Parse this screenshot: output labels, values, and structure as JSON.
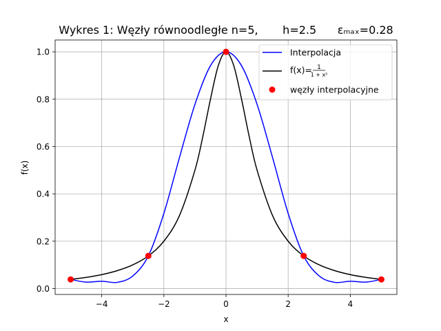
{
  "chart_data": {
    "type": "line",
    "title": "Wykres 1: Węzły równoodległe n=5,       h=2.5      εₘₐₓ=0.28",
    "xlabel": "x",
    "ylabel": "f(x)",
    "xlim": [
      -5.5,
      5.5
    ],
    "ylim": [
      -0.025,
      1.05
    ],
    "xticks": [
      -4,
      -2,
      0,
      2,
      4
    ],
    "yticks": [
      0.0,
      0.2,
      0.4,
      0.6,
      0.8,
      1.0
    ],
    "xtick_labels": [
      "−4",
      "−2",
      "0",
      "2",
      "4"
    ],
    "ytick_labels": [
      "0.0",
      "0.2",
      "0.4",
      "0.6",
      "0.8",
      "1.0"
    ],
    "grid": true,
    "legend_position": "top-right",
    "series": [
      {
        "name": "Interpolacja",
        "kind": "line",
        "color": "#0000ff",
        "x": [
          -5.0,
          -4.5,
          -4.0,
          -3.5,
          -3.0,
          -2.5,
          -2.0,
          -1.5,
          -1.0,
          -0.5,
          0.0,
          0.5,
          1.0,
          1.5,
          2.0,
          2.5,
          3.0,
          3.5,
          4.0,
          4.5,
          5.0
        ],
        "y": [
          0.0385,
          0.0271,
          0.0308,
          0.0262,
          0.0531,
          0.1379,
          0.3174,
          0.5524,
          0.7781,
          0.9413,
          1.0,
          0.9413,
          0.7781,
          0.5524,
          0.3174,
          0.1379,
          0.0531,
          0.0262,
          0.0308,
          0.0271,
          0.0385
        ]
      },
      {
        "name": "f(x)=",
        "legend_fraction": {
          "numerator": "1",
          "denominator": "1 + x²"
        },
        "kind": "line",
        "color": "#000000",
        "x": [
          -5.0,
          -4.5,
          -4.0,
          -3.5,
          -3.0,
          -2.5,
          -2.0,
          -1.5,
          -1.0,
          -0.75,
          -0.5,
          -0.25,
          0.0,
          0.25,
          0.5,
          0.75,
          1.0,
          1.5,
          2.0,
          2.5,
          3.0,
          3.5,
          4.0,
          4.5,
          5.0
        ],
        "y": [
          0.0385,
          0.0471,
          0.0588,
          0.0755,
          0.1,
          0.1379,
          0.2,
          0.3077,
          0.5,
          0.64,
          0.8,
          0.9412,
          1.0,
          0.9412,
          0.8,
          0.64,
          0.5,
          0.3077,
          0.2,
          0.1379,
          0.1,
          0.0755,
          0.0588,
          0.0471,
          0.0385
        ]
      },
      {
        "name": "węzły interpolacyjne",
        "kind": "scatter",
        "color": "#ff0000",
        "x": [
          -5.0,
          -2.5,
          0.0,
          2.5,
          5.0
        ],
        "y": [
          0.0385,
          0.1379,
          1.0,
          0.1379,
          0.0385
        ]
      }
    ]
  }
}
